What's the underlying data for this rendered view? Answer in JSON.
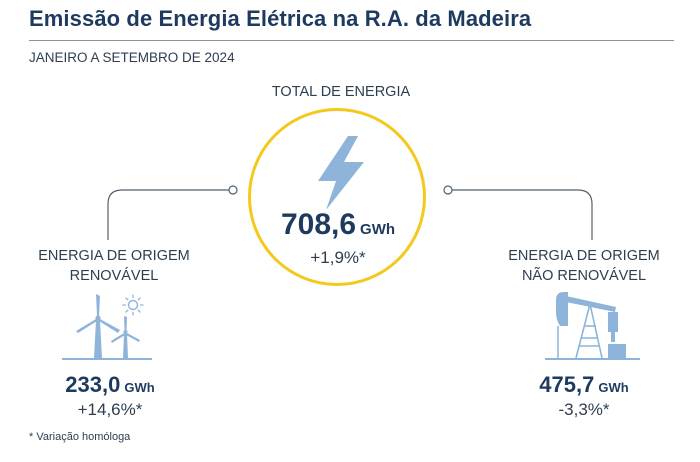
{
  "header": {
    "title": "Emissão de Energia Elétrica na R.A. da Madeira",
    "subtitle": "JANEIRO A SETEMBRO DE 2024"
  },
  "total": {
    "label": "TOTAL DE ENERGIA",
    "value": "708,6",
    "unit": "GWh",
    "change": "+1,9%*"
  },
  "renewable": {
    "label_line1": "ENERGIA DE ORIGEM",
    "label_line2": "RENOVÁVEL",
    "value": "233,0",
    "unit": "GWh",
    "change": "+14,6%*"
  },
  "non_renewable": {
    "label_line1": "ENERGIA DE ORIGEM",
    "label_line2": "NÃO RENOVÁVEL",
    "value": "475,7",
    "unit": "GWh",
    "change": "-3,3%*"
  },
  "footnote": "* Variação homóloga",
  "colors": {
    "title": "#1e3a5f",
    "accent_circle": "#f4c81c",
    "icon": "#8fb4d9",
    "connector": "#55606c"
  },
  "icons": {
    "center": "lightning-bolt-icon",
    "renewable": "wind-turbines-icon",
    "non_renewable": "oil-pump-icon"
  }
}
